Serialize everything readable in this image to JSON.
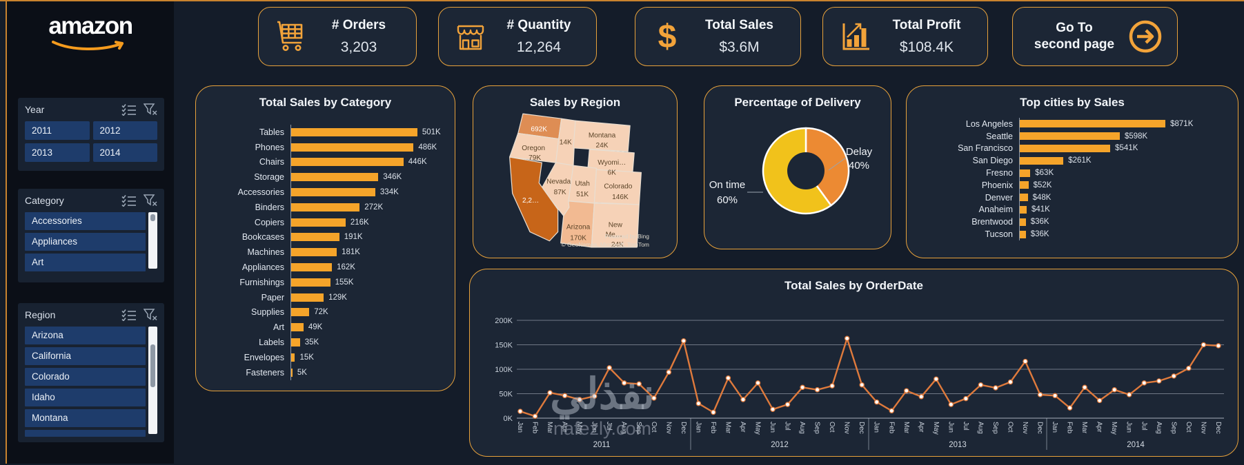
{
  "accent": "#F2A33A",
  "colors": {
    "bar": "#F5A42A",
    "panel_border": "#E8A23B",
    "line": "#DF7A3C",
    "marker_fill": "#FFFFFF",
    "slicer_item_bg": "#1E3C6B"
  },
  "sidebar": {
    "logo_text": "amazon",
    "slicers": [
      {
        "title": "Year",
        "items": [
          "2011",
          "2012",
          "2013",
          "2014"
        ],
        "has_partial_item": false
      },
      {
        "title": "Category",
        "items": [
          "Accessories",
          "Appliances",
          "Art"
        ],
        "has_partial_item": false
      },
      {
        "title": "Region",
        "items": [
          "Arizona",
          "California",
          "Colorado",
          "Idaho",
          "Montana"
        ],
        "has_partial_item": true
      }
    ]
  },
  "kpis": [
    {
      "icon": "cart-icon",
      "label": "# Orders",
      "value": "3,203"
    },
    {
      "icon": "store-icon",
      "label": "# Quantity",
      "value": "12,264"
    },
    {
      "icon": "dollar-icon",
      "label": "Total Sales",
      "value": "$3.6M"
    },
    {
      "icon": "profit-icon",
      "label": "Total Profit",
      "value": "$108.4K"
    }
  ],
  "nav_button": {
    "line1": "Go To",
    "line2": "second page",
    "icon": "go-arrow-icon"
  },
  "map": {
    "title": "Sales by Region",
    "attribution_line1": "Powered by Bing",
    "attribution_line2": "© GeoNames, Microsoft, TomTom",
    "states": [
      {
        "label": "",
        "value": "692K",
        "color": "#DE8D54"
      },
      {
        "label": "Oregon",
        "value": "79K",
        "color": "#F6D2B7"
      },
      {
        "label": "",
        "value": "14K",
        "color": "#F6D2B7"
      },
      {
        "label": "Montana",
        "value": "24K",
        "color": "#F6D2B7"
      },
      {
        "label": "Wyomi…",
        "value": "6K",
        "color": "#F6D2B7"
      },
      {
        "label": "Nevada",
        "value": "87K",
        "color": "#F6D2B7"
      },
      {
        "label": "Utah",
        "value": "51K",
        "color": "#F6D2B7"
      },
      {
        "label": "Colorado",
        "value": "146K",
        "color": "#F6D2B7"
      },
      {
        "label": "",
        "value": "2,2…",
        "color": "#C76519"
      },
      {
        "label": "Arizona",
        "value": "170K",
        "color": "#F2BA92"
      },
      {
        "label_lines": [
          "New",
          "Me…"
        ],
        "value": "24K",
        "color": "#F6D2B7"
      }
    ]
  },
  "chart_data": [
    {
      "type": "bar",
      "title": "Total Sales by Category",
      "orientation": "horizontal",
      "categories": [
        "Tables",
        "Phones",
        "Chairs",
        "Storage",
        "Accessories",
        "Binders",
        "Copiers",
        "Bookcases",
        "Machines",
        "Appliances",
        "Furnishings",
        "Paper",
        "Supplies",
        "Art",
        "Labels",
        "Envelopes",
        "Fasteners"
      ],
      "values": [
        501,
        486,
        446,
        346,
        334,
        272,
        216,
        191,
        181,
        162,
        155,
        129,
        72,
        49,
        35,
        15,
        5
      ],
      "value_labels": [
        "501K",
        "486K",
        "446K",
        "346K",
        "334K",
        "272K",
        "216K",
        "191K",
        "181K",
        "162K",
        "155K",
        "129K",
        "72K",
        "49K",
        "35K",
        "15K",
        "5K"
      ],
      "unit": "K",
      "bar_color": "#F5A42A"
    },
    {
      "type": "pie",
      "title": "Percentage of Delivery",
      "donut": true,
      "slices": [
        {
          "label": "Delay",
          "pct": 40,
          "pct_label": "40%",
          "color": "#EC8A33"
        },
        {
          "label": "On time",
          "pct": 60,
          "pct_label": "60%",
          "color": "#F1C21B"
        }
      ]
    },
    {
      "type": "bar",
      "title": "Top cities by Sales",
      "orientation": "horizontal",
      "categories": [
        "Los Angeles",
        "Seattle",
        "San Francisco",
        "San Diego",
        "Fresno",
        "Phoenix",
        "Denver",
        "Anaheim",
        "Brentwood",
        "Tucson"
      ],
      "values": [
        871,
        598,
        541,
        261,
        63,
        52,
        48,
        41,
        36,
        36
      ],
      "value_labels": [
        "$871K",
        "$598K",
        "$541K",
        "$261K",
        "$63K",
        "$52K",
        "$48K",
        "$41K",
        "$36K",
        "$36K"
      ],
      "unit": "K",
      "bar_color": "#F5A42A"
    },
    {
      "type": "line",
      "title": "Total Sales by OrderDate",
      "years": [
        "2011",
        "2012",
        "2013",
        "2014"
      ],
      "months": [
        "Jan",
        "Feb",
        "Mar",
        "Apr",
        "May",
        "Jun",
        "Jul",
        "Aug",
        "Sep",
        "Oct",
        "Nov",
        "Dec"
      ],
      "values": [
        14,
        4,
        52,
        46,
        38,
        45,
        103,
        72,
        70,
        41,
        94,
        158,
        30,
        12,
        82,
        38,
        72,
        18,
        28,
        63,
        58,
        66,
        163,
        68,
        33,
        15,
        56,
        44,
        80,
        28,
        40,
        68,
        62,
        74,
        116,
        48,
        46,
        21,
        63,
        36,
        58,
        48,
        72,
        76,
        86,
        102,
        150,
        148
      ],
      "ylim": [
        0,
        200
      ],
      "ytick_labels": [
        "0K",
        "50K",
        "100K",
        "150K",
        "200K"
      ],
      "grid": true,
      "line_color": "#DF7A3C"
    }
  ],
  "watermark": {
    "arabic": "نفذلي",
    "latin": "nafezly.com"
  }
}
